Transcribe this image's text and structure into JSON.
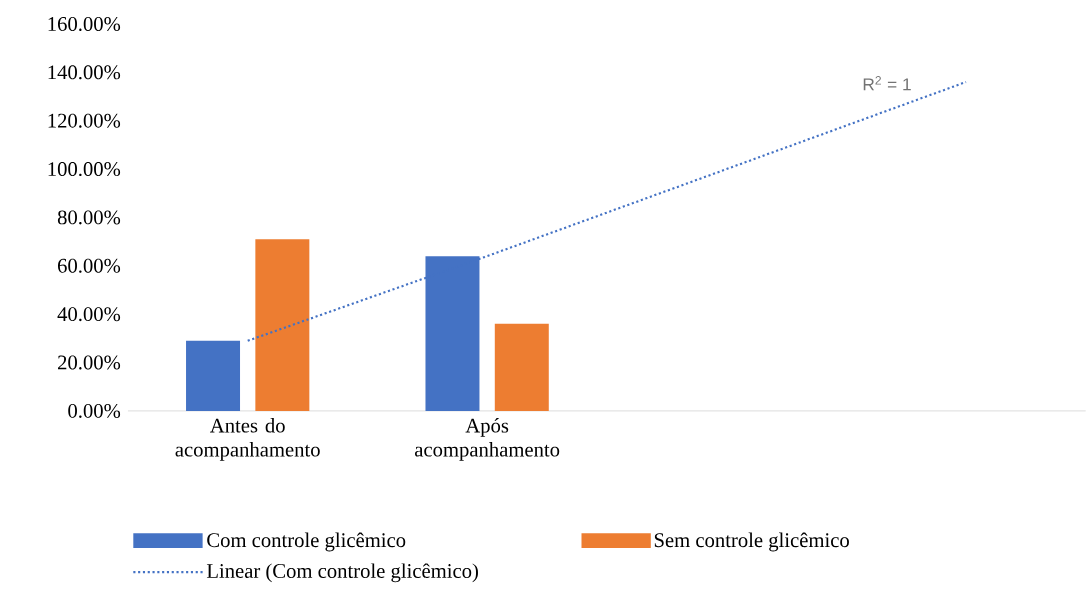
{
  "chart_data": {
    "type": "bar",
    "categories": [
      "Antes do acompanhamento",
      "Após acompanhamento",
      null,
      null
    ],
    "series": [
      {
        "name": "Com controle glicêmico",
        "color": "#4472c4",
        "values": [
          29,
          64,
          null,
          null
        ]
      },
      {
        "name": "Sem controle glicêmico",
        "color": "#ed7d31",
        "values": [
          71,
          36,
          null,
          null
        ]
      },
      {
        "name": "Linear (Com controle glicêmico)",
        "type": "line",
        "line_style": "dotted",
        "color": "#4472c4",
        "values": [
          29,
          64,
          100,
          136
        ]
      }
    ],
    "ylim": [
      0,
      160
    ],
    "yticks": [
      {
        "value": 0,
        "label": "0.00%"
      },
      {
        "value": 20,
        "label": "20.00%"
      },
      {
        "value": 40,
        "label": "40.00%"
      },
      {
        "value": 60,
        "label": "60.00%"
      },
      {
        "value": 80,
        "label": "80.00%"
      },
      {
        "value": 100,
        "label": "100.00%"
      },
      {
        "value": 120,
        "label": "120.00%"
      },
      {
        "value": 140,
        "label": "140.00%"
      },
      {
        "value": 160,
        "label": "160.00%"
      }
    ],
    "legend": "bottom",
    "annotations": [
      "R$^{2}$ = 1"
    ]
  }
}
